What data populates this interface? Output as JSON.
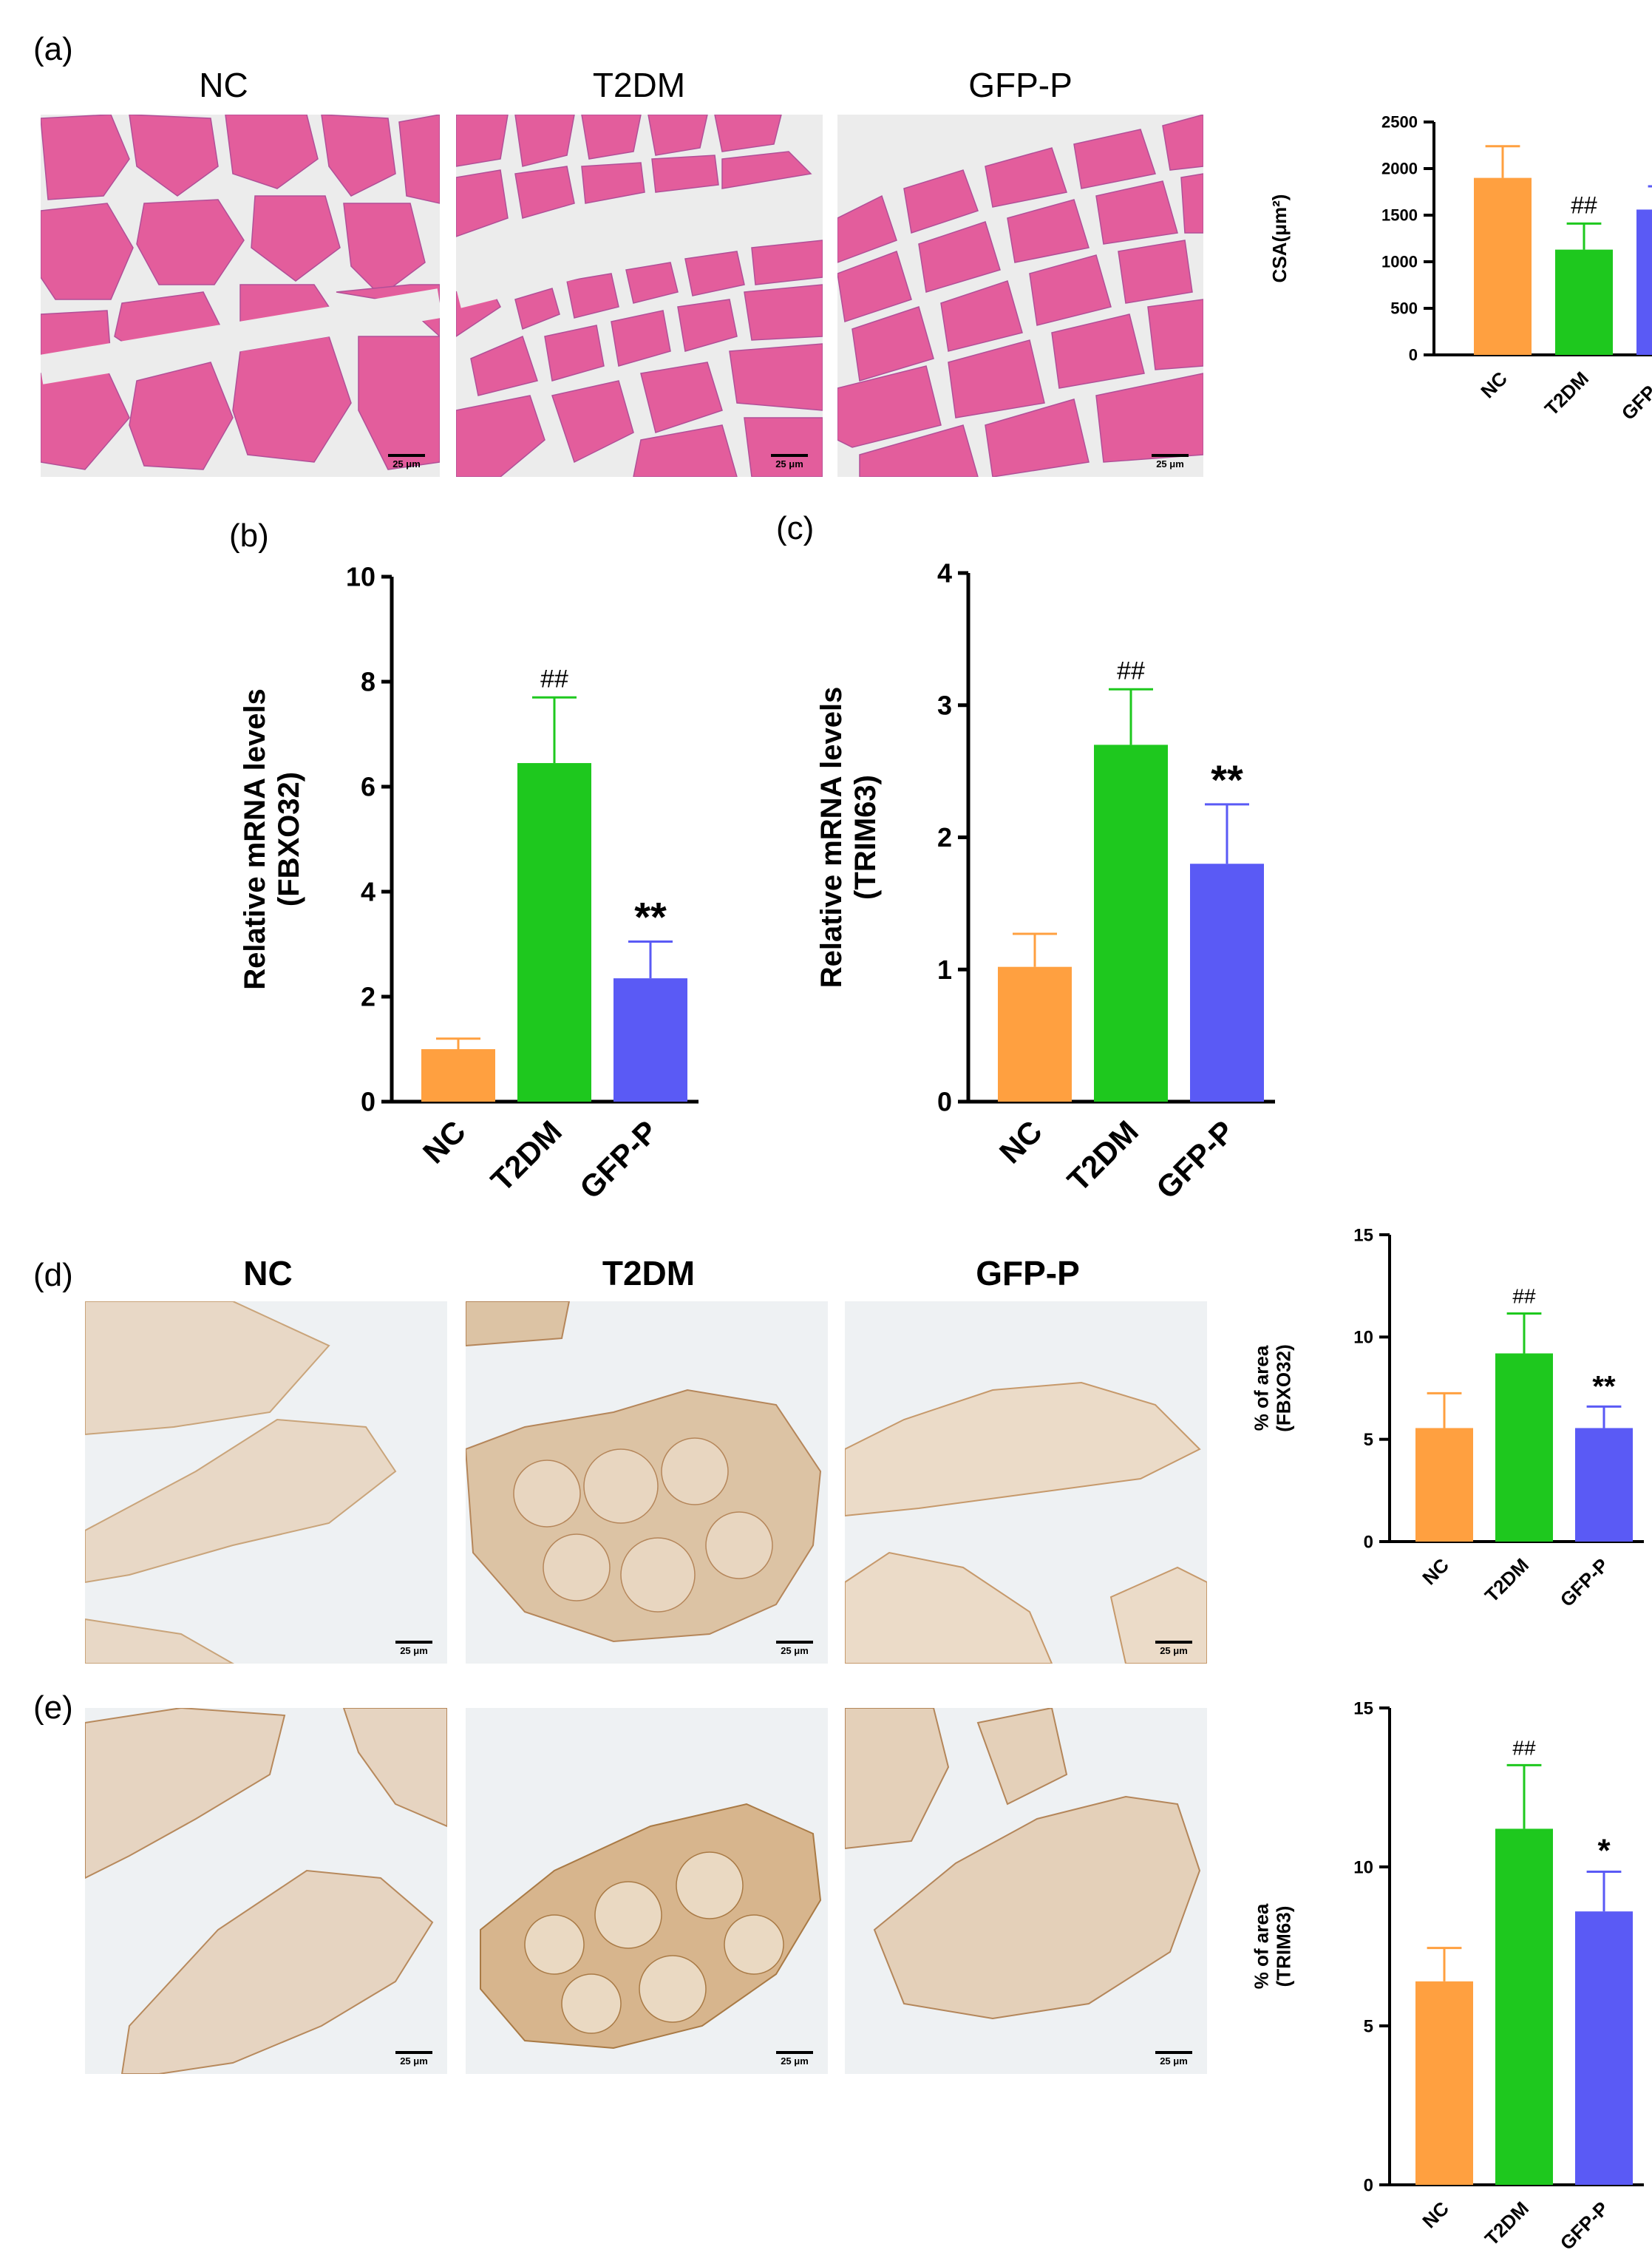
{
  "panel_letters": {
    "a": "(a)",
    "b": "(b)",
    "c": "(c)",
    "d": "(d)",
    "e": "(e)"
  },
  "micrographs": {
    "he_titles": [
      "NC",
      "T2DM",
      "GFP-P"
    ],
    "ihc_titles": [
      "NC",
      "T2DM",
      "GFP-P"
    ],
    "scale_label": "25 μm"
  },
  "colors": {
    "NC": "#FFA040",
    "T2DM": "#1EC81E",
    "GFP-P": "#5A5AF5"
  },
  "chart_data": [
    {
      "id": "a",
      "type": "bar",
      "categories": [
        "NC",
        "T2DM",
        "GFP-P"
      ],
      "values": [
        1900,
        1130,
        1560
      ],
      "errors": [
        340,
        280,
        250
      ],
      "annotations": [
        "",
        "##",
        "*"
      ],
      "ylabel": "CSA(μm²)",
      "ylim": [
        0,
        2500
      ],
      "yticks": [
        0,
        500,
        1000,
        1500,
        2000,
        2500
      ]
    },
    {
      "id": "b",
      "type": "bar",
      "categories": [
        "NC",
        "T2DM",
        "GFP-P"
      ],
      "values": [
        1.0,
        6.45,
        2.35
      ],
      "errors": [
        0.2,
        1.25,
        0.7
      ],
      "annotations": [
        "",
        "##",
        "**"
      ],
      "ylabel": [
        "Relative mRNA levels",
        "(FBXO32)"
      ],
      "ylim": [
        0,
        10
      ],
      "yticks": [
        0,
        2,
        4,
        6,
        8,
        10
      ]
    },
    {
      "id": "c",
      "type": "bar",
      "categories": [
        "NC",
        "T2DM",
        "GFP-P"
      ],
      "values": [
        1.02,
        2.7,
        1.8
      ],
      "errors": [
        0.25,
        0.42,
        0.45
      ],
      "annotations": [
        "",
        "##",
        "**"
      ],
      "ylabel": [
        "Relative mRNA levels",
        "(TRIM63)"
      ],
      "ylim": [
        0,
        4
      ],
      "yticks": [
        0,
        1,
        2,
        3,
        4
      ]
    },
    {
      "id": "d",
      "type": "bar",
      "categories": [
        "NC",
        "T2DM",
        "GFP-P"
      ],
      "values": [
        5.55,
        9.2,
        5.55
      ],
      "errors": [
        1.7,
        1.95,
        1.05
      ],
      "annotations": [
        "",
        "##",
        "**"
      ],
      "ylabel": [
        "% of area",
        "(FBXO32)"
      ],
      "ylim": [
        0,
        15
      ],
      "yticks": [
        0,
        5,
        10,
        15
      ]
    },
    {
      "id": "e",
      "type": "bar",
      "categories": [
        "NC",
        "T2DM",
        "GFP-P"
      ],
      "values": [
        6.4,
        11.2,
        8.6
      ],
      "errors": [
        1.05,
        2.0,
        1.25
      ],
      "annotations": [
        "",
        "##",
        "*"
      ],
      "ylabel": [
        "% of area",
        "(TRIM63)"
      ],
      "ylim": [
        0,
        15
      ],
      "yticks": [
        0,
        5,
        10,
        15
      ]
    }
  ]
}
